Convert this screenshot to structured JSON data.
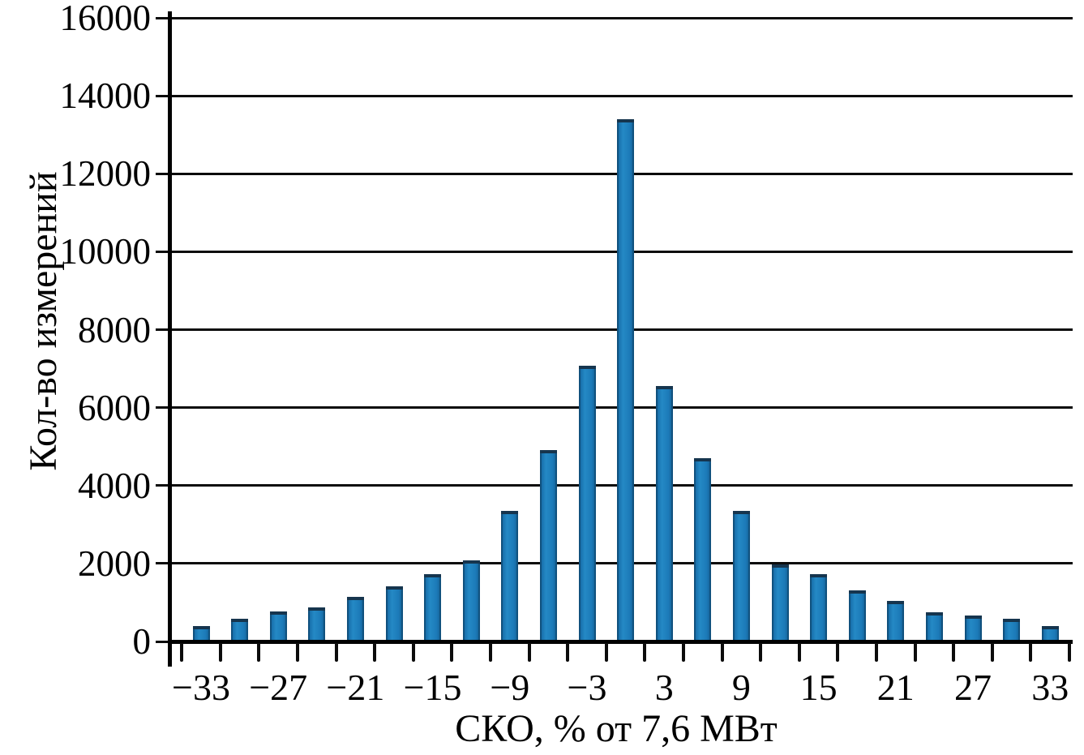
{
  "figure": {
    "background": "#ffffff"
  },
  "chart_data": {
    "type": "bar",
    "title": "",
    "xlabel": "СКО, % от 7,6 МВт",
    "ylabel": "Кол-во измерений",
    "categories": [
      -33,
      -30,
      -27,
      -24,
      -21,
      -18,
      -15,
      -12,
      -9,
      -6,
      -3,
      0,
      3,
      6,
      9,
      12,
      15,
      18,
      21,
      24,
      27,
      30,
      33
    ],
    "values": [
      390,
      580,
      770,
      870,
      1150,
      1420,
      1730,
      2090,
      3350,
      4910,
      7070,
      13390,
      6560,
      4710,
      3340,
      1980,
      1730,
      1320,
      1040,
      750,
      660,
      580,
      400
    ],
    "ylim": [
      0,
      16000
    ],
    "ytick_interval": 2000,
    "y_tick_labels": [
      "0",
      "2000",
      "4000",
      "6000",
      "8000",
      "10000",
      "12000",
      "14000",
      "16000"
    ],
    "x_tick_labels": [
      "−33",
      "−27",
      "−21",
      "−15",
      "−9",
      "−3",
      "3",
      "9",
      "15",
      "21",
      "27",
      "33"
    ],
    "x_label_every_n_bars": 2,
    "grid": "horizontal",
    "legend": "none",
    "bar_color": "#1c7ab8",
    "bar_edge_color": "#10517e",
    "bar_top_color": "#16354e",
    "axis_color": "#000000",
    "gridline_color": "#0c0c0c",
    "text_color": "#000000"
  }
}
